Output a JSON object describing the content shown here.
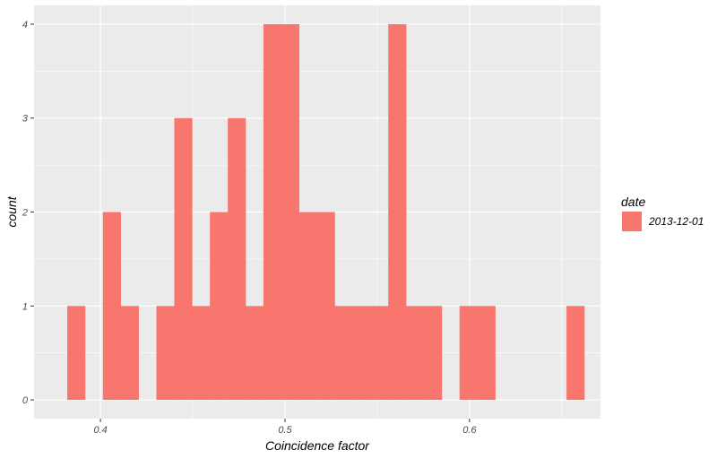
{
  "chart_data": {
    "type": "bar",
    "title": "",
    "xlabel": "Coincidence factor",
    "ylabel": "count",
    "bin_width": 0.00966,
    "bins": [
      {
        "x0": 0.382,
        "count": 1
      },
      {
        "x0": 0.4013,
        "count": 2
      },
      {
        "x0": 0.411,
        "count": 1
      },
      {
        "x0": 0.4303,
        "count": 1
      },
      {
        "x0": 0.44,
        "count": 3
      },
      {
        "x0": 0.4496,
        "count": 1
      },
      {
        "x0": 0.4593,
        "count": 2
      },
      {
        "x0": 0.469,
        "count": 3
      },
      {
        "x0": 0.4786,
        "count": 1
      },
      {
        "x0": 0.4883,
        "count": 4
      },
      {
        "x0": 0.498,
        "count": 4
      },
      {
        "x0": 0.5076,
        "count": 2
      },
      {
        "x0": 0.5173,
        "count": 2
      },
      {
        "x0": 0.527,
        "count": 1
      },
      {
        "x0": 0.5366,
        "count": 1
      },
      {
        "x0": 0.5463,
        "count": 1
      },
      {
        "x0": 0.556,
        "count": 4
      },
      {
        "x0": 0.5656,
        "count": 1
      },
      {
        "x0": 0.5753,
        "count": 1
      },
      {
        "x0": 0.5946,
        "count": 1
      },
      {
        "x0": 0.6043,
        "count": 1
      },
      {
        "x0": 0.6526,
        "count": 1
      }
    ],
    "xlim": [
      0.364,
      0.671
    ],
    "ylim": [
      -0.2,
      4.2
    ],
    "x_ticks": [
      {
        "value": 0.4,
        "label": "0.4"
      },
      {
        "value": 0.5,
        "label": "0.5"
      },
      {
        "value": 0.6,
        "label": "0.6"
      }
    ],
    "y_ticks": [
      {
        "value": 0,
        "label": "0"
      },
      {
        "value": 1,
        "label": "1"
      },
      {
        "value": 2,
        "label": "2"
      },
      {
        "value": 3,
        "label": "3"
      },
      {
        "value": 4,
        "label": "4"
      }
    ],
    "legend": {
      "title": "date",
      "position": "right",
      "entries": [
        {
          "label": "2013-12-01",
          "color": "#F8766D"
        }
      ]
    },
    "colors": {
      "bar": "#F8766D",
      "panel_background": "#EBEBEB",
      "grid": "#FFFFFF",
      "tick_text": "#4D4D4D"
    },
    "grid": true
  }
}
